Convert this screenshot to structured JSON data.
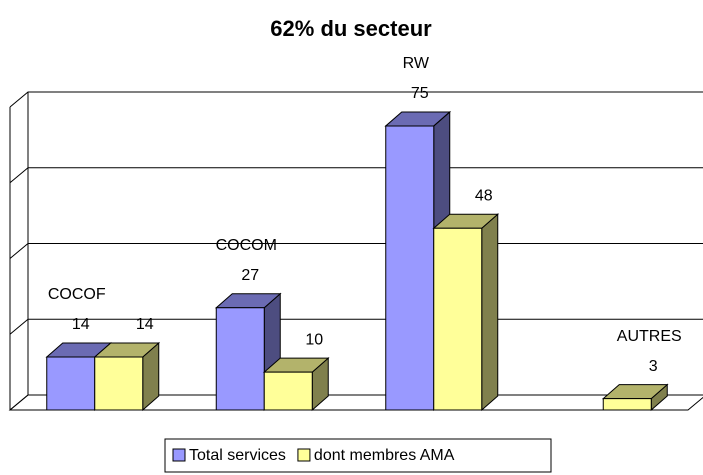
{
  "chart_data": {
    "type": "bar3d",
    "title": "62% du secteur",
    "categories": [
      "COCOF",
      "COCOM",
      "RW",
      "AUTRES"
    ],
    "series": [
      {
        "name": "Total services",
        "color": "#9999ff",
        "values": [
          14,
          27,
          75,
          null
        ]
      },
      {
        "name": "dont membres AMA",
        "color": "#ffff99",
        "values": [
          14,
          10,
          48,
          3
        ]
      }
    ],
    "ylim": [
      0,
      80
    ],
    "yticks": [
      0,
      20,
      40,
      60,
      80
    ],
    "grid": true,
    "legend": "bottom"
  }
}
